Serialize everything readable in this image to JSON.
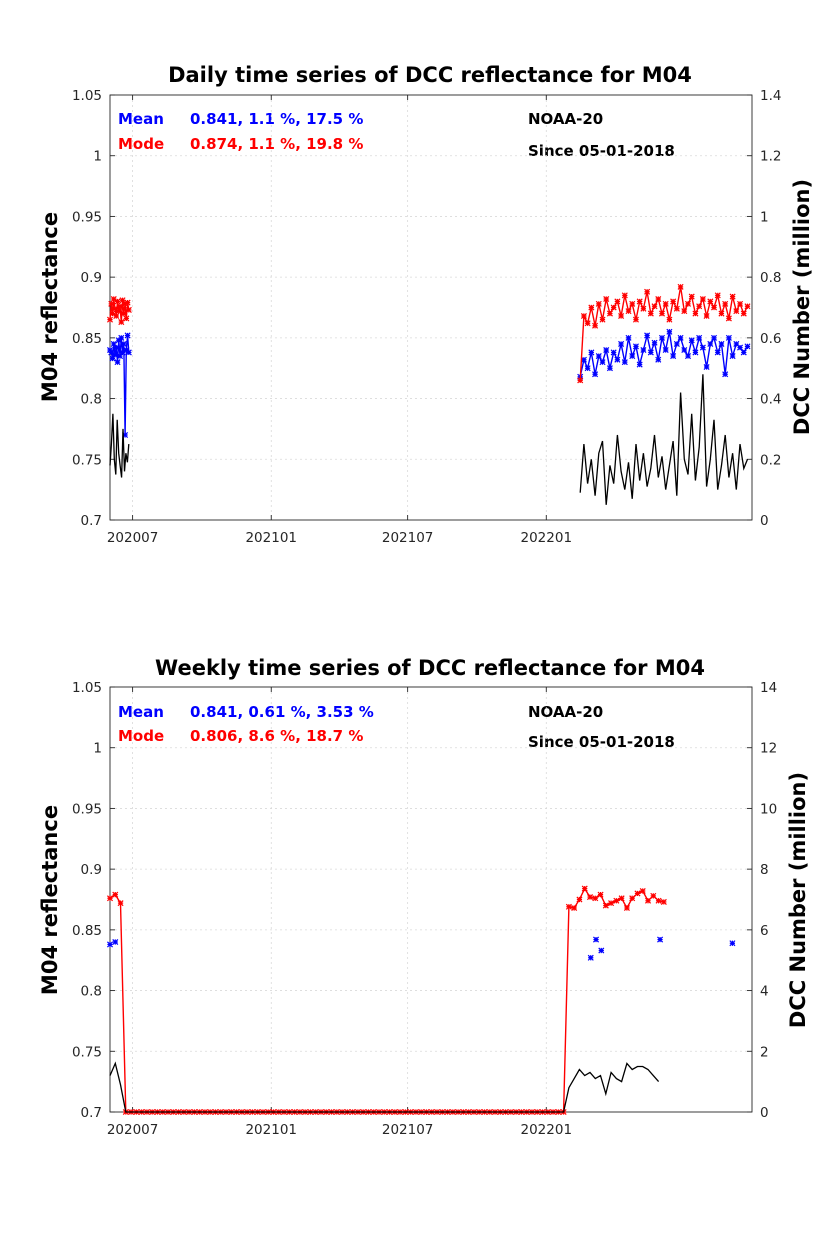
{
  "chart_data": [
    {
      "type": "line",
      "title": "Daily time series of DCC reflectance for M04",
      "ylabel": "M04 reflectance",
      "y2label": "DCC Number (million)",
      "ylim": [
        0.7,
        1.05
      ],
      "y2lim": [
        0,
        1.4
      ],
      "yticks": [
        "0.7",
        "0.75",
        "0.8",
        "0.85",
        "0.9",
        "0.95",
        "1",
        "1.05"
      ],
      "y2ticks": [
        "0",
        "0.2",
        "0.4",
        "0.6",
        "0.8",
        "1",
        "1.2",
        "1.4"
      ],
      "xticks": [
        "202007",
        "202101",
        "202107",
        "202201"
      ],
      "grid": true,
      "annotations": {
        "mean_label": "Mean",
        "mean_stats": "0.841, 1.1 %, 17.5 %",
        "mode_label": "Mode",
        "mode_stats": "0.874, 1.1 %, 19.8 %",
        "satellite": "NOAA-20",
        "since": "Since 05-01-2018"
      },
      "colors": {
        "mean": "#0000ff",
        "mode": "#ff0000",
        "count": "#000000"
      },
      "series": [
        {
          "name": "Mean",
          "segments": [
            {
              "start": "2020-06-01",
              "end": "2020-06-26",
              "values": [
                0.84,
                0.838,
                0.833,
                0.845,
                0.836,
                0.842,
                0.83,
                0.848,
                0.835,
                0.85,
                0.838,
                0.845,
                0.77,
                0.84,
                0.852,
                0.838
              ]
            },
            {
              "start": "2022-02-15",
              "end": "2022-09-25",
              "values": [
                0.818,
                0.832,
                0.825,
                0.838,
                0.82,
                0.835,
                0.83,
                0.84,
                0.825,
                0.838,
                0.832,
                0.845,
                0.83,
                0.85,
                0.835,
                0.843,
                0.828,
                0.84,
                0.852,
                0.838,
                0.846,
                0.832,
                0.85,
                0.84,
                0.855,
                0.835,
                0.845,
                0.85,
                0.84,
                0.835,
                0.848,
                0.838,
                0.85,
                0.842,
                0.826,
                0.845,
                0.85,
                0.838,
                0.845,
                0.82,
                0.85,
                0.835,
                0.845,
                0.842,
                0.838,
                0.843
              ]
            }
          ]
        },
        {
          "name": "Mode",
          "segments": [
            {
              "start": "2020-06-01",
              "end": "2020-06-26",
              "values": [
                0.865,
                0.878,
                0.87,
                0.882,
                0.874,
                0.868,
                0.88,
                0.872,
                0.876,
                0.863,
                0.881,
                0.87,
                0.878,
                0.866,
                0.879,
                0.873
              ]
            },
            {
              "start": "2022-02-15",
              "end": "2022-09-25",
              "values": [
                0.815,
                0.868,
                0.862,
                0.875,
                0.86,
                0.878,
                0.865,
                0.882,
                0.87,
                0.875,
                0.88,
                0.868,
                0.885,
                0.872,
                0.878,
                0.865,
                0.88,
                0.874,
                0.888,
                0.87,
                0.876,
                0.882,
                0.87,
                0.878,
                0.865,
                0.88,
                0.874,
                0.892,
                0.872,
                0.878,
                0.884,
                0.87,
                0.876,
                0.882,
                0.868,
                0.88,
                0.875,
                0.885,
                0.87,
                0.878,
                0.866,
                0.884,
                0.872,
                0.878,
                0.87,
                0.876
              ]
            }
          ]
        },
        {
          "name": "DCC Number",
          "axis": "right",
          "segments": [
            {
              "start": "2020-06-01",
              "end": "2020-06-26",
              "values": [
                0.18,
                0.25,
                0.35,
                0.2,
                0.15,
                0.33,
                0.22,
                0.18,
                0.14,
                0.3,
                0.16,
                0.22,
                0.19,
                0.25
              ]
            },
            {
              "start": "2022-02-15",
              "end": "2022-09-25",
              "values": [
                0.09,
                0.25,
                0.12,
                0.2,
                0.08,
                0.22,
                0.26,
                0.05,
                0.18,
                0.12,
                0.28,
                0.16,
                0.1,
                0.19,
                0.07,
                0.25,
                0.13,
                0.22,
                0.11,
                0.17,
                0.28,
                0.14,
                0.21,
                0.1,
                0.18,
                0.26,
                0.08,
                0.42,
                0.2,
                0.15,
                0.35,
                0.13,
                0.24,
                0.48,
                0.11,
                0.2,
                0.33,
                0.1,
                0.18,
                0.28,
                0.14,
                0.22,
                0.1,
                0.25,
                0.17,
                0.2
              ]
            }
          ]
        }
      ]
    },
    {
      "type": "line",
      "title": "Weekly time series of DCC reflectance for M04",
      "ylabel": "M04 reflectance",
      "y2label": "DCC Number (million)",
      "ylim": [
        0.7,
        1.05
      ],
      "y2lim": [
        0,
        14
      ],
      "yticks": [
        "0.7",
        "0.75",
        "0.8",
        "0.85",
        "0.9",
        "0.95",
        "1",
        "1.05"
      ],
      "y2ticks": [
        "0",
        "2",
        "4",
        "6",
        "8",
        "10",
        "12",
        "14"
      ],
      "xticks": [
        "202007",
        "202101",
        "202107",
        "202201"
      ],
      "grid": true,
      "annotations": {
        "mean_label": "Mean",
        "mean_stats": "0.841, 0.61 %, 3.53 %",
        "mode_label": "Mode",
        "mode_stats": "0.806, 8.6 %, 18.7 %",
        "satellite": "NOAA-20",
        "since": "Since 05-01-2018"
      },
      "colors": {
        "mean": "#0000ff",
        "mode": "#ff0000",
        "count": "#000000"
      },
      "series": [
        {
          "name": "Mean",
          "points": [
            [
              "2020-06-01",
              0.838
            ],
            [
              "2020-06-08",
              0.84
            ],
            [
              "2022-03-01",
              0.827
            ],
            [
              "2022-03-08",
              0.842
            ],
            [
              "2022-03-15",
              0.833
            ],
            [
              "2022-06-01",
              0.842
            ],
            [
              "2022-09-05",
              0.839
            ]
          ]
        },
        {
          "name": "Mode",
          "weekly": {
            "start": "2020-06-01",
            "step_days": 7,
            "values": [
              0.876,
              0.879,
              0.872,
              0.7,
              0.7,
              0.7,
              0.7,
              0.7,
              0.7,
              0.7,
              0.7,
              0.7,
              0.7,
              0.7,
              0.7,
              0.7,
              0.7,
              0.7,
              0.7,
              0.7,
              0.7,
              0.7,
              0.7,
              0.7,
              0.7,
              0.7,
              0.7,
              0.7,
              0.7,
              0.7,
              0.7,
              0.7,
              0.7,
              0.7,
              0.7,
              0.7,
              0.7,
              0.7,
              0.7,
              0.7,
              0.7,
              0.7,
              0.7,
              0.7,
              0.7,
              0.7,
              0.7,
              0.7,
              0.7,
              0.7,
              0.7,
              0.7,
              0.7,
              0.7,
              0.7,
              0.7,
              0.7,
              0.7,
              0.7,
              0.7,
              0.7,
              0.7,
              0.7,
              0.7,
              0.7,
              0.7,
              0.7,
              0.7,
              0.7,
              0.7,
              0.7,
              0.7,
              0.7,
              0.7,
              0.7,
              0.7,
              0.7,
              0.7,
              0.7,
              0.7,
              0.7,
              0.7,
              0.7,
              0.7,
              0.7,
              0.7,
              0.7,
              0.869,
              0.868,
              0.875,
              0.884,
              0.877,
              0.876,
              0.879,
              0.87,
              0.872,
              0.874,
              0.876,
              0.868,
              0.876,
              0.88,
              0.882,
              0.874,
              0.878,
              0.874,
              0.873
            ]
          }
        },
        {
          "name": "DCC Number",
          "axis": "right",
          "weekly": {
            "start": "2020-06-01",
            "step_days": 7,
            "values": [
              1.2,
              1.6,
              0.9,
              0,
              0,
              0,
              0,
              0,
              0,
              0,
              0,
              0,
              0,
              0,
              0,
              0,
              0,
              0,
              0,
              0,
              0,
              0,
              0,
              0,
              0,
              0,
              0,
              0,
              0,
              0,
              0,
              0,
              0,
              0,
              0,
              0,
              0,
              0,
              0,
              0,
              0,
              0,
              0,
              0,
              0,
              0,
              0,
              0,
              0,
              0,
              0,
              0,
              0,
              0,
              0,
              0,
              0,
              0,
              0,
              0,
              0,
              0,
              0,
              0,
              0,
              0,
              0,
              0,
              0,
              0,
              0,
              0,
              0,
              0,
              0,
              0,
              0,
              0,
              0,
              0,
              0,
              0,
              0,
              0,
              0,
              0,
              0,
              0.8,
              1.1,
              1.4,
              1.2,
              1.3,
              1.1,
              1.2,
              0.6,
              1.3,
              1.1,
              1.0,
              1.6,
              1.4,
              1.5,
              1.5,
              1.4,
              1.2,
              1.0
            ]
          }
        }
      ]
    }
  ]
}
